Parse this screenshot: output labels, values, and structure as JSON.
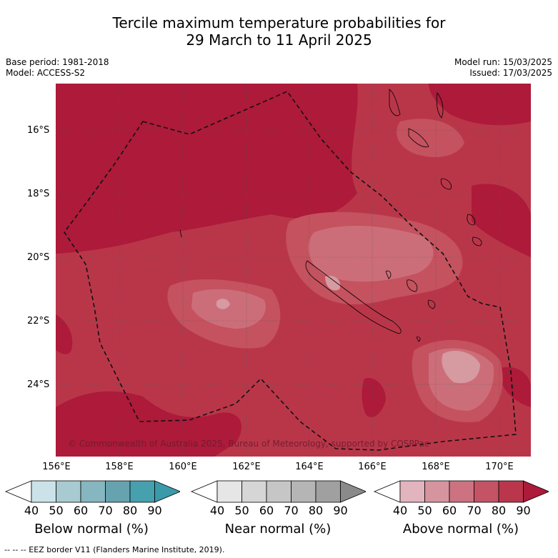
{
  "title_line1": "Tercile maximum temperature probabilities for",
  "title_line2": "29 March to 11 April 2025",
  "meta_left": {
    "base_period": "Base period: 1981-2018",
    "model": "Model: ACCESS-S2"
  },
  "meta_right": {
    "model_run": "Model run: 15/03/2025",
    "issued": "Issued: 17/03/2025"
  },
  "lat_labels": [
    "16°S",
    "18°S",
    "20°S",
    "22°S",
    "24°S"
  ],
  "lon_labels": [
    "156°E",
    "158°E",
    "160°E",
    "162°E",
    "164°E",
    "166°E",
    "168°E",
    "170°E"
  ],
  "copyright": "© Commonwealth of Australia 2025, Bureau of Meteorology, supported by COSPPac",
  "colorbars": [
    {
      "title": "Below normal (%)",
      "ticks": [
        "40",
        "50",
        "60",
        "70",
        "80",
        "90"
      ],
      "colors": [
        "#ffffff",
        "#cbe3e8",
        "#a8cbd1",
        "#86b6bf",
        "#66a3ae",
        "#46a0ae",
        "#3a9aa9"
      ]
    },
    {
      "title": "Near normal (%)",
      "ticks": [
        "40",
        "50",
        "60",
        "70",
        "80",
        "90"
      ],
      "colors": [
        "#ffffff",
        "#e6e6e6",
        "#d6d6d6",
        "#c6c6c6",
        "#b5b5b5",
        "#a0a0a0",
        "#8a8a8a"
      ]
    },
    {
      "title": "Above normal (%)",
      "ticks": [
        "40",
        "50",
        "60",
        "70",
        "80",
        "90"
      ],
      "colors": [
        "#ffffff",
        "#e2b4bd",
        "#d6949f",
        "#cc7280",
        "#c45365",
        "#b9364d",
        "#ad1a3a"
      ]
    }
  ],
  "map_colors": {
    "above_90": "#ad1a3a",
    "above_80": "#b93649",
    "above_70": "#c4525f",
    "above_60": "#cc6e79",
    "above_50": "#d69aa1"
  },
  "footnote": "--  --  -- EEZ border V11 (Flanders Marine Institute, 2019)."
}
